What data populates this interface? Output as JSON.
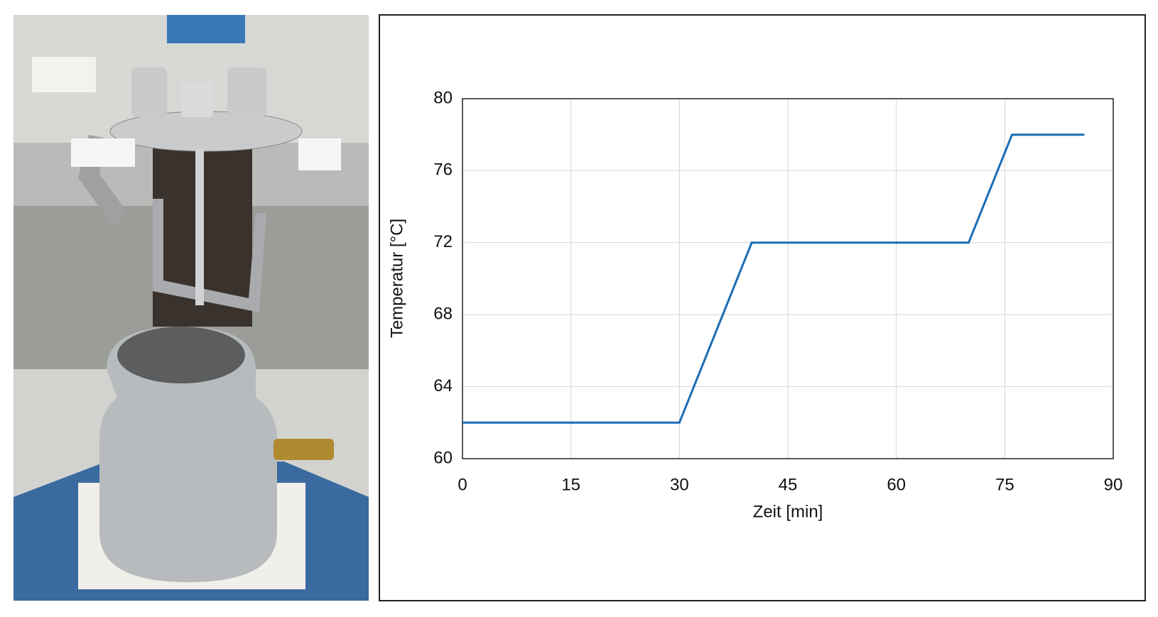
{
  "chart_data": {
    "type": "line",
    "xlabel": "Zeit [min]",
    "ylabel": "Temperatur [°C]",
    "x": [
      0,
      30,
      40,
      70,
      76,
      86
    ],
    "values": [
      62,
      62,
      72,
      72,
      78,
      78
    ],
    "color": "#1a6db5",
    "xlim": [
      0,
      90
    ],
    "xticks": [
      0,
      15,
      30,
      45,
      60,
      75,
      90
    ],
    "ylim": [
      60,
      80
    ],
    "yticks": [
      60,
      64,
      68,
      72,
      76,
      80
    ],
    "grid": true
  }
}
